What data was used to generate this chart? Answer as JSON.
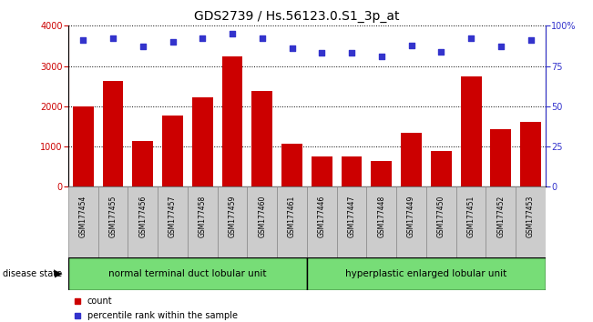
{
  "title": "GDS2739 / Hs.56123.0.S1_3p_at",
  "samples": [
    "GSM177454",
    "GSM177455",
    "GSM177456",
    "GSM177457",
    "GSM177458",
    "GSM177459",
    "GSM177460",
    "GSM177461",
    "GSM177446",
    "GSM177447",
    "GSM177448",
    "GSM177449",
    "GSM177450",
    "GSM177451",
    "GSM177452",
    "GSM177453"
  ],
  "counts": [
    2000,
    2620,
    1130,
    1780,
    2230,
    3250,
    2390,
    1080,
    760,
    760,
    640,
    1340,
    880,
    2750,
    1430,
    1620
  ],
  "percentiles": [
    91,
    92,
    87,
    90,
    92,
    95,
    92,
    86,
    83,
    83,
    81,
    88,
    84,
    92,
    87,
    91
  ],
  "group1_label": "normal terminal duct lobular unit",
  "group2_label": "hyperplastic enlarged lobular unit",
  "group1_count": 8,
  "group2_count": 8,
  "disease_state_label": "disease state",
  "bar_color": "#cc0000",
  "dot_color": "#3333cc",
  "ylim_left": [
    0,
    4000
  ],
  "ylim_right": [
    0,
    100
  ],
  "yticks_left": [
    0,
    1000,
    2000,
    3000,
    4000
  ],
  "yticks_right": [
    0,
    25,
    50,
    75,
    100
  ],
  "grid_color": "#000000",
  "bg_color": "#ffffff",
  "group_color": "#77dd77",
  "tick_bg_color": "#cccccc",
  "legend_count_label": "count",
  "legend_pct_label": "percentile rank within the sample",
  "title_fontsize": 10,
  "tick_fontsize": 7,
  "label_fontsize": 7,
  "group_fontsize": 7.5
}
